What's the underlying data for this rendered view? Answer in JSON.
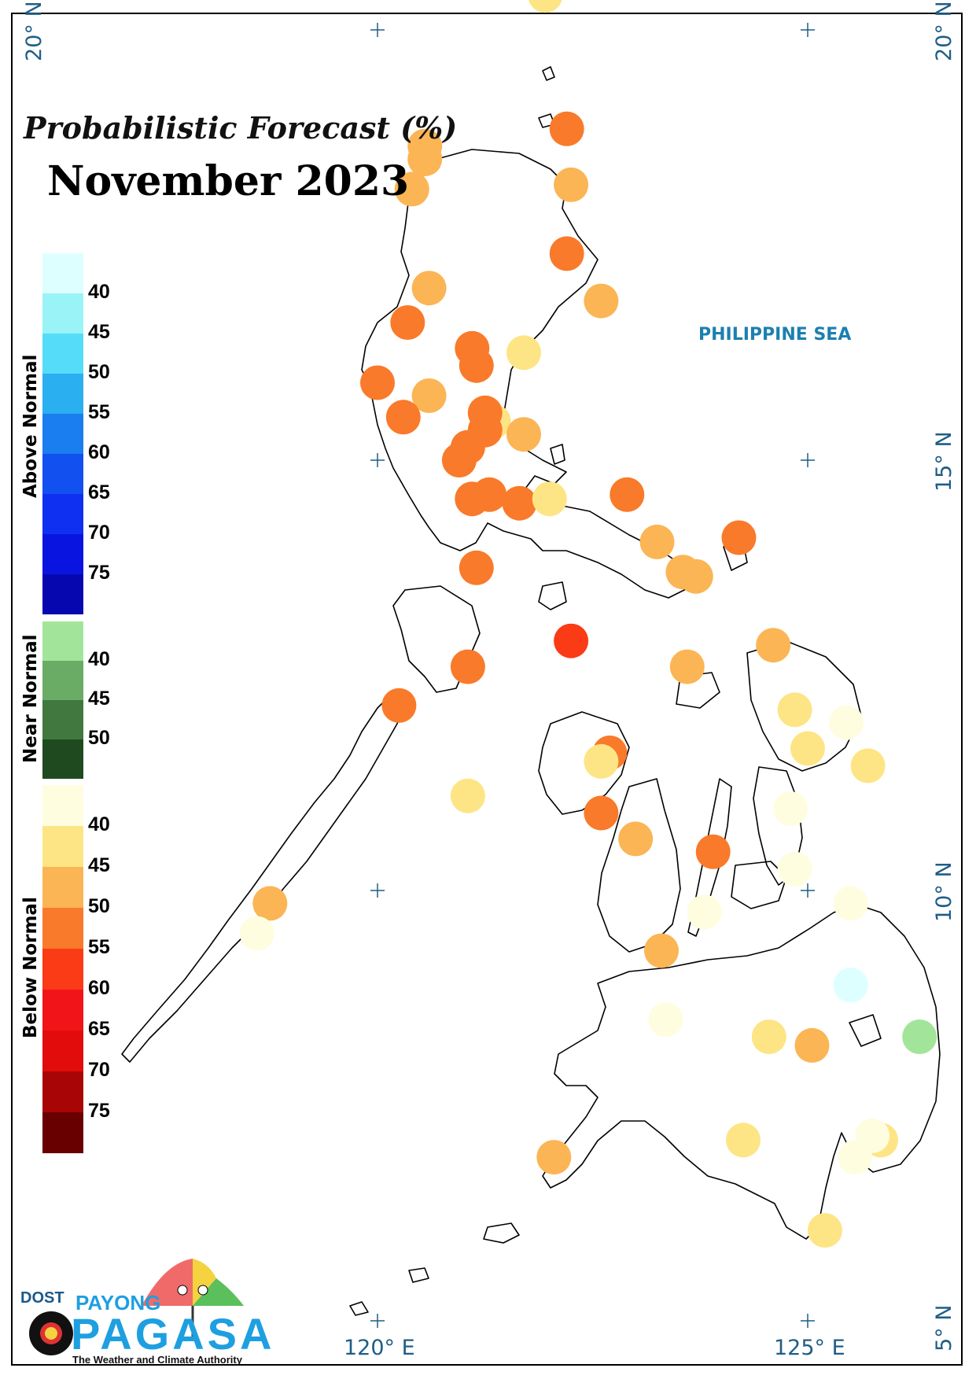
{
  "title": {
    "line1": "Probabilistic Forecast (%)",
    "line2": "November 2023"
  },
  "sea_label": "PHILIPPINE SEA",
  "grid_labels": {
    "lat_20_left": "20° N",
    "lat_20_right": "20° N",
    "lat_15": "15° N",
    "lat_10": "10° N",
    "lat_5": "5° N",
    "lon_120": "120° E",
    "lon_125": "125° E"
  },
  "legend": {
    "above_normal": {
      "title": "Above Normal",
      "ticks": [
        "40",
        "45",
        "50",
        "55",
        "60",
        "65",
        "70",
        "75"
      ],
      "colors": [
        "#ddffff",
        "#99f3f7",
        "#55dcf8",
        "#2aaff0",
        "#1a7df0",
        "#1250f0",
        "#0f30f0",
        "#0a14e0",
        "#0707b0"
      ]
    },
    "near_normal": {
      "title": "Near Normal",
      "ticks": [
        "40",
        "45",
        "50"
      ],
      "colors": [
        "#a2e59a",
        "#6aac66",
        "#40783f",
        "#1f4a20"
      ]
    },
    "below_normal": {
      "title": "Below Normal",
      "ticks": [
        "40",
        "45",
        "50",
        "55",
        "60",
        "65",
        "70",
        "75"
      ],
      "colors": [
        "#fffde0",
        "#fde585",
        "#fbb555",
        "#f97a2a",
        "#fb3a16",
        "#f1151a",
        "#e20c0c",
        "#a80606",
        "#680000"
      ]
    }
  },
  "stations": [
    {
      "lat": 20.4,
      "lon": 121.95,
      "category": "below",
      "color": "#fde585"
    },
    {
      "lat": 18.65,
      "lon": 120.55,
      "category": "below",
      "color": "#fbb555"
    },
    {
      "lat": 18.5,
      "lon": 120.55,
      "category": "below",
      "color": "#fbb555"
    },
    {
      "lat": 18.15,
      "lon": 120.4,
      "category": "below",
      "color": "#fbb555"
    },
    {
      "lat": 18.85,
      "lon": 122.2,
      "category": "below",
      "color": "#f97a2a"
    },
    {
      "lat": 18.2,
      "lon": 122.25,
      "category": "below",
      "color": "#fbb555"
    },
    {
      "lat": 17.4,
      "lon": 122.2,
      "category": "below",
      "color": "#f97a2a"
    },
    {
      "lat": 17.0,
      "lon": 120.6,
      "category": "below",
      "color": "#fbb555"
    },
    {
      "lat": 16.85,
      "lon": 122.6,
      "category": "below",
      "color": "#fbb555"
    },
    {
      "lat": 16.6,
      "lon": 120.35,
      "category": "below",
      "color": "#f97a2a"
    },
    {
      "lat": 16.3,
      "lon": 121.1,
      "category": "below",
      "color": "#f97a2a"
    },
    {
      "lat": 16.1,
      "lon": 121.15,
      "category": "below",
      "color": "#f97a2a"
    },
    {
      "lat": 16.25,
      "lon": 121.7,
      "category": "below",
      "color": "#fde585"
    },
    {
      "lat": 15.9,
      "lon": 120.0,
      "category": "below",
      "color": "#f97a2a"
    },
    {
      "lat": 15.75,
      "lon": 120.6,
      "category": "below",
      "color": "#fbb555"
    },
    {
      "lat": 15.5,
      "lon": 120.3,
      "category": "below",
      "color": "#f97a2a"
    },
    {
      "lat": 15.45,
      "lon": 121.35,
      "category": "below",
      "color": "#fde585"
    },
    {
      "lat": 15.55,
      "lon": 121.25,
      "category": "below",
      "color": "#f97a2a"
    },
    {
      "lat": 15.35,
      "lon": 121.25,
      "category": "below",
      "color": "#f97a2a"
    },
    {
      "lat": 15.3,
      "lon": 121.7,
      "category": "below",
      "color": "#fbb555"
    },
    {
      "lat": 15.15,
      "lon": 121.05,
      "category": "below",
      "color": "#f97a2a"
    },
    {
      "lat": 15.0,
      "lon": 120.95,
      "category": "below",
      "color": "#f97a2a"
    },
    {
      "lat": 14.55,
      "lon": 121.1,
      "category": "below",
      "color": "#f97a2a"
    },
    {
      "lat": 14.6,
      "lon": 121.3,
      "category": "below",
      "color": "#f97a2a"
    },
    {
      "lat": 14.5,
      "lon": 121.65,
      "category": "below",
      "color": "#f97a2a"
    },
    {
      "lat": 14.55,
      "lon": 122.0,
      "category": "below",
      "color": "#fde585"
    },
    {
      "lat": 14.6,
      "lon": 122.9,
      "category": "below",
      "color": "#f97a2a"
    },
    {
      "lat": 14.05,
      "lon": 123.25,
      "category": "below",
      "color": "#fbb555"
    },
    {
      "lat": 14.1,
      "lon": 124.2,
      "category": "below",
      "color": "#f97a2a"
    },
    {
      "lat": 13.7,
      "lon": 123.55,
      "category": "below",
      "color": "#fbb555"
    },
    {
      "lat": 13.65,
      "lon": 123.7,
      "category": "below",
      "color": "#fbb555"
    },
    {
      "lat": 13.75,
      "lon": 121.15,
      "category": "below",
      "color": "#f97a2a"
    },
    {
      "lat": 12.9,
      "lon": 122.25,
      "category": "below",
      "color": "#fb3a16"
    },
    {
      "lat": 12.6,
      "lon": 121.05,
      "category": "below",
      "color": "#f97a2a"
    },
    {
      "lat": 12.6,
      "lon": 123.6,
      "category": "below",
      "color": "#fbb555"
    },
    {
      "lat": 12.85,
      "lon": 124.6,
      "category": "below",
      "color": "#fbb555"
    },
    {
      "lat": 12.15,
      "lon": 120.25,
      "category": "below",
      "color": "#f97a2a"
    },
    {
      "lat": 12.1,
      "lon": 124.85,
      "category": "below",
      "color": "#fde585"
    },
    {
      "lat": 11.95,
      "lon": 125.45,
      "category": "below",
      "color": "#fffde0"
    },
    {
      "lat": 11.6,
      "lon": 122.7,
      "category": "below",
      "color": "#f97a2a"
    },
    {
      "lat": 11.5,
      "lon": 122.6,
      "category": "below",
      "color": "#fde585"
    },
    {
      "lat": 11.65,
      "lon": 125.0,
      "category": "below",
      "color": "#fde585"
    },
    {
      "lat": 11.45,
      "lon": 125.7,
      "category": "below",
      "color": "#fde585"
    },
    {
      "lat": 11.1,
      "lon": 121.05,
      "category": "below",
      "color": "#fde585"
    },
    {
      "lat": 10.9,
      "lon": 122.6,
      "category": "below",
      "color": "#f97a2a"
    },
    {
      "lat": 10.95,
      "lon": 124.8,
      "category": "below",
      "color": "#fffde0"
    },
    {
      "lat": 10.6,
      "lon": 123.0,
      "category": "below",
      "color": "#fbb555"
    },
    {
      "lat": 10.45,
      "lon": 123.9,
      "category": "below",
      "color": "#f97a2a"
    },
    {
      "lat": 10.25,
      "lon": 124.85,
      "category": "below",
      "color": "#fffde0"
    },
    {
      "lat": 9.85,
      "lon": 125.5,
      "category": "below",
      "color": "#fffde0"
    },
    {
      "lat": 9.75,
      "lon": 123.8,
      "category": "below",
      "color": "#fffde0"
    },
    {
      "lat": 9.85,
      "lon": 118.75,
      "category": "below",
      "color": "#fbb555"
    },
    {
      "lat": 9.5,
      "lon": 118.6,
      "category": "below",
      "color": "#fffde0"
    },
    {
      "lat": 9.3,
      "lon": 123.3,
      "category": "below",
      "color": "#fbb555"
    },
    {
      "lat": 8.9,
      "lon": 125.5,
      "category": "above",
      "color": "#ddffff"
    },
    {
      "lat": 8.5,
      "lon": 123.35,
      "category": "below",
      "color": "#fffde0"
    },
    {
      "lat": 8.3,
      "lon": 124.55,
      "category": "below",
      "color": "#fde585"
    },
    {
      "lat": 8.2,
      "lon": 125.05,
      "category": "below",
      "color": "#fbb555"
    },
    {
      "lat": 8.3,
      "lon": 126.3,
      "category": "near",
      "color": "#a2e59a"
    },
    {
      "lat": 7.1,
      "lon": 124.25,
      "category": "below",
      "color": "#fde585"
    },
    {
      "lat": 7.1,
      "lon": 125.85,
      "category": "below",
      "color": "#fde585"
    },
    {
      "lat": 7.15,
      "lon": 125.75,
      "category": "below",
      "color": "#fffde0"
    },
    {
      "lat": 6.9,
      "lon": 125.55,
      "category": "below",
      "color": "#fffde0"
    },
    {
      "lat": 6.9,
      "lon": 122.05,
      "category": "below",
      "color": "#fbb555"
    },
    {
      "lat": 6.05,
      "lon": 125.2,
      "category": "below",
      "color": "#fde585"
    }
  ]
}
